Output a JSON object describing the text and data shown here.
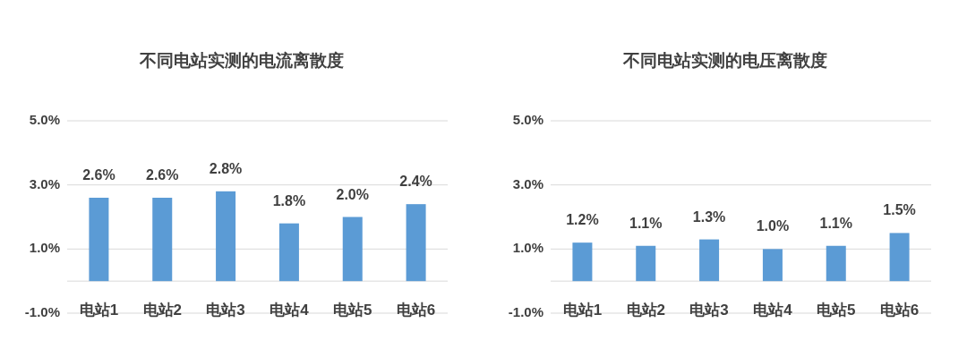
{
  "chart_data": [
    {
      "type": "bar",
      "title": "不同电站实测的电流离散度",
      "categories": [
        "电站1",
        "电站2",
        "电站3",
        "电站4",
        "电站5",
        "电站6"
      ],
      "series": [
        {
          "color": "#5b9bd5",
          "values": [
            2.6,
            2.6,
            2.8,
            1.8,
            2.0,
            2.4
          ],
          "value_labels": [
            "2.6%",
            "2.6%",
            "2.8%",
            "1.8%",
            "2.0%",
            "2.4%"
          ]
        }
      ],
      "ylim": [
        -1,
        5
      ],
      "yticks": [
        {
          "value": -1,
          "label": "-1.0%"
        },
        {
          "value": 1,
          "label": "1.0%"
        },
        {
          "value": 3,
          "label": "3.0%"
        },
        {
          "value": 5,
          "label": "5.0%"
        }
      ],
      "grid": "y"
    },
    {
      "type": "bar",
      "title": "不同电站实测的电压离散度",
      "categories": [
        "电站1",
        "电站2",
        "电站3",
        "电站4",
        "电站5",
        "电站6"
      ],
      "series": [
        {
          "color": "#5b9bd5",
          "values": [
            1.2,
            1.1,
            1.3,
            1.0,
            1.1,
            1.5
          ],
          "value_labels": [
            "1.2%",
            "1.1%",
            "1.3%",
            "1.0%",
            "1.1%",
            "1.5%"
          ]
        }
      ],
      "ylim": [
        -1,
        5
      ],
      "yticks": [
        {
          "value": -1,
          "label": "-1.0%"
        },
        {
          "value": 1,
          "label": "1.0%"
        },
        {
          "value": 3,
          "label": "3.0%"
        },
        {
          "value": 5,
          "label": "5.0%"
        }
      ],
      "grid": "y"
    }
  ]
}
